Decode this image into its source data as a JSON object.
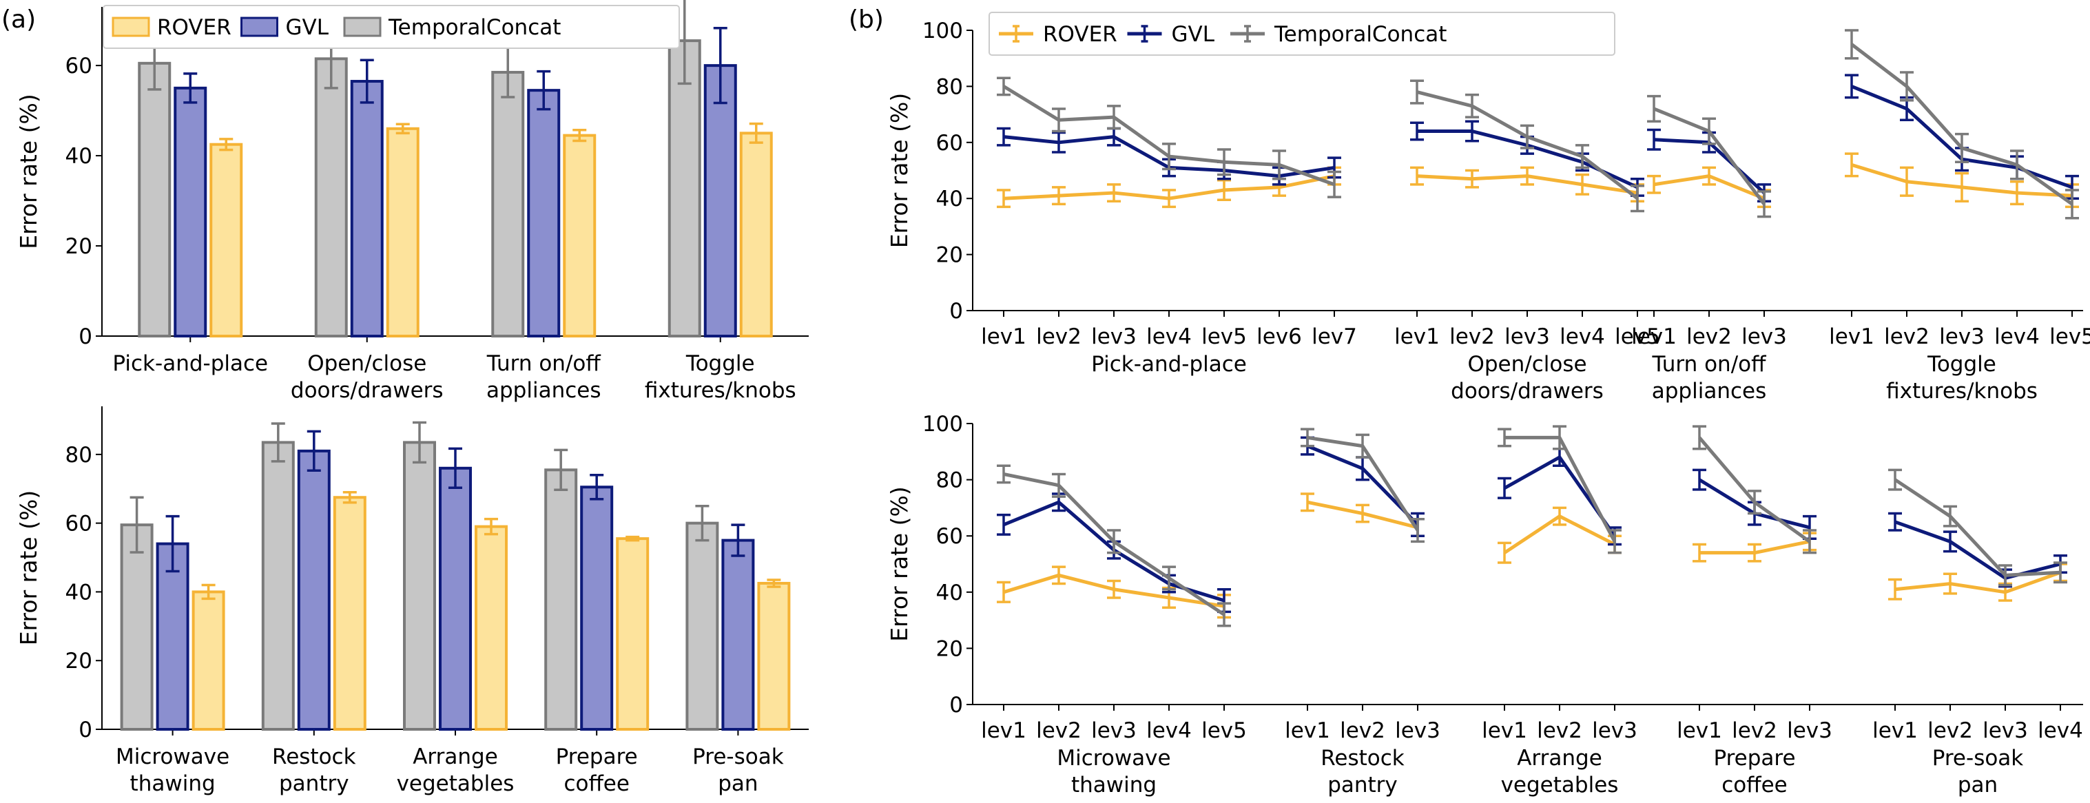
{
  "panel_labels": {
    "a": "(a)",
    "b": "(b)"
  },
  "colors": {
    "ROVER": "#f5b335",
    "GVL": "#0d1a7a",
    "TemporalConcat": "#7a7a7a"
  },
  "chart_data": [
    {
      "id": "a_top",
      "type": "bar",
      "ylabel": "Error rate (%)",
      "ylim": [
        0,
        73
      ],
      "yticks": [
        0,
        20,
        40,
        60
      ],
      "legend": {
        "placement": "top-left",
        "entries": [
          "ROVER",
          "GVL",
          "TemporalConcat"
        ]
      },
      "categories": [
        [
          "Pick-and-place"
        ],
        [
          "Open/close",
          "doors/drawers"
        ],
        [
          "Turn on/off",
          "appliances"
        ],
        [
          "Toggle",
          "fixtures/knobs"
        ]
      ],
      "series": [
        {
          "name": "TemporalConcat",
          "values": [
            60.5,
            61.5,
            58.5,
            65.5
          ],
          "err": [
            5.8,
            6.5,
            5.5,
            9.5
          ]
        },
        {
          "name": "GVL",
          "values": [
            55,
            56.5,
            54.5,
            60
          ],
          "err": [
            3.2,
            4.7,
            4.2,
            8.3
          ]
        },
        {
          "name": "ROVER",
          "values": [
            42.5,
            46,
            44.5,
            45
          ],
          "err": [
            1.2,
            1,
            1.2,
            2.1
          ]
        }
      ]
    },
    {
      "id": "a_bottom",
      "type": "bar",
      "ylabel": "Error rate (%)",
      "ylim": [
        0,
        94
      ],
      "yticks": [
        0,
        20,
        40,
        60,
        80
      ],
      "categories": [
        [
          "Microwave",
          "thawing"
        ],
        [
          "Restock",
          "pantry"
        ],
        [
          "Arrange",
          "vegetables"
        ],
        [
          "Prepare",
          "coffee"
        ],
        [
          "Pre-soak",
          "pan"
        ]
      ],
      "series": [
        {
          "name": "TemporalConcat",
          "values": [
            59.5,
            83.5,
            83.5,
            75.5,
            60
          ],
          "err": [
            8,
            5.5,
            5.8,
            5.8,
            5
          ]
        },
        {
          "name": "GVL",
          "values": [
            54,
            81,
            76,
            70.5,
            55
          ],
          "err": [
            8,
            5.7,
            5.7,
            3.5,
            4.5
          ]
        },
        {
          "name": "ROVER",
          "values": [
            40,
            67.5,
            59,
            55.5,
            42.5
          ],
          "err": [
            2,
            1.5,
            2.2,
            0.5,
            1
          ]
        }
      ]
    },
    {
      "id": "b_top",
      "type": "line",
      "ylabel": "Error rate (%)",
      "ylim": [
        0,
        100
      ],
      "yticks": [
        0,
        20,
        40,
        60,
        80,
        100
      ],
      "legend": {
        "placement": "top-left",
        "entries": [
          "ROVER",
          "GVL",
          "TemporalConcat"
        ]
      },
      "groups": [
        {
          "label": [
            "Pick-and-place"
          ],
          "x": [
            "lev1",
            "lev2",
            "lev3",
            "lev4",
            "lev5",
            "lev6",
            "lev7"
          ],
          "series": [
            {
              "name": "ROVER",
              "values": [
                40,
                41,
                42,
                40,
                43,
                44,
                48
              ],
              "err": [
                3,
                3,
                3,
                3,
                3.5,
                3,
                3
              ]
            },
            {
              "name": "GVL",
              "values": [
                62,
                60,
                62,
                51,
                50,
                48,
                51
              ],
              "err": [
                3,
                3.5,
                3,
                3,
                3,
                3,
                3.5
              ]
            },
            {
              "name": "TemporalConcat",
              "values": [
                80,
                68,
                69,
                55,
                53,
                52,
                45
              ],
              "err": [
                3,
                4,
                4,
                4.5,
                4.5,
                5,
                4.5
              ]
            }
          ]
        },
        {
          "label": [
            "Open/close",
            "doors/drawers"
          ],
          "x": [
            "lev1",
            "lev2",
            "lev3",
            "lev4",
            "lev5"
          ],
          "series": [
            {
              "name": "ROVER",
              "values": [
                48,
                47,
                48,
                45,
                42
              ],
              "err": [
                3,
                3,
                3,
                3.5,
                3
              ]
            },
            {
              "name": "GVL",
              "values": [
                64,
                64,
                59,
                53,
                44
              ],
              "err": [
                3,
                3.5,
                3,
                3,
                3
              ]
            },
            {
              "name": "TemporalConcat",
              "values": [
                78,
                73,
                62,
                55,
                40
              ],
              "err": [
                4,
                4,
                4,
                4,
                4.5
              ]
            }
          ]
        },
        {
          "label": [
            "Turn on/off",
            "appliances"
          ],
          "x": [
            "lev1",
            "lev2",
            "lev3"
          ],
          "series": [
            {
              "name": "ROVER",
              "values": [
                45,
                48,
                40
              ],
              "err": [
                3,
                3,
                3
              ]
            },
            {
              "name": "GVL",
              "values": [
                61,
                60,
                42
              ],
              "err": [
                3.5,
                3.5,
                3
              ]
            },
            {
              "name": "TemporalConcat",
              "values": [
                72,
                64,
                38
              ],
              "err": [
                4.5,
                4.5,
                4.5
              ]
            }
          ]
        },
        {
          "label": [
            "Toggle",
            "fixtures/knobs"
          ],
          "x": [
            "lev1",
            "lev2",
            "lev3",
            "lev4",
            "lev5"
          ],
          "series": [
            {
              "name": "ROVER",
              "values": [
                52,
                46,
                44,
                42,
                41
              ],
              "err": [
                4,
                5,
                5,
                4,
                4
              ]
            },
            {
              "name": "GVL",
              "values": [
                80,
                72,
                54,
                51,
                44
              ],
              "err": [
                4,
                4,
                4,
                4,
                4
              ]
            },
            {
              "name": "TemporalConcat",
              "values": [
                95,
                80,
                58,
                52,
                38
              ],
              "err": [
                5,
                5,
                5,
                5,
                5
              ]
            }
          ]
        }
      ]
    },
    {
      "id": "b_bottom",
      "type": "line",
      "ylabel": "Error rate (%)",
      "ylim": [
        0,
        100
      ],
      "yticks": [
        0,
        20,
        40,
        60,
        80,
        100
      ],
      "groups": [
        {
          "label": [
            "Microwave",
            "thawing"
          ],
          "x": [
            "lev1",
            "lev2",
            "lev3",
            "lev4",
            "lev5"
          ],
          "series": [
            {
              "name": "ROVER",
              "values": [
                40,
                46,
                41,
                38,
                35
              ],
              "err": [
                3.5,
                3,
                3,
                3.5,
                4
              ]
            },
            {
              "name": "GVL",
              "values": [
                64,
                72,
                55,
                43,
                37
              ],
              "err": [
                3.5,
                3,
                3,
                3,
                4
              ]
            },
            {
              "name": "TemporalConcat",
              "values": [
                82,
                78,
                58,
                45,
                32
              ],
              "err": [
                3,
                4,
                4,
                4,
                4
              ]
            }
          ]
        },
        {
          "label": [
            "Restock",
            "pantry"
          ],
          "x": [
            "lev1",
            "lev2",
            "lev3"
          ],
          "series": [
            {
              "name": "ROVER",
              "values": [
                72,
                68,
                63
              ],
              "err": [
                3,
                3,
                3
              ]
            },
            {
              "name": "GVL",
              "values": [
                92,
                84,
                64
              ],
              "err": [
                3,
                4,
                4
              ]
            },
            {
              "name": "TemporalConcat",
              "values": [
                95,
                92,
                62
              ],
              "err": [
                3,
                4,
                4
              ]
            }
          ]
        },
        {
          "label": [
            "Arrange",
            "vegetables"
          ],
          "x": [
            "lev1",
            "lev2",
            "lev3"
          ],
          "series": [
            {
              "name": "ROVER",
              "values": [
                54,
                67,
                57
              ],
              "err": [
                3.5,
                3,
                3
              ]
            },
            {
              "name": "GVL",
              "values": [
                77,
                88,
                60
              ],
              "err": [
                3.5,
                3,
                3
              ]
            },
            {
              "name": "TemporalConcat",
              "values": [
                95,
                95,
                58
              ],
              "err": [
                3,
                4,
                4
              ]
            }
          ]
        },
        {
          "label": [
            "Prepare",
            "coffee"
          ],
          "x": [
            "lev1",
            "lev2",
            "lev3"
          ],
          "series": [
            {
              "name": "ROVER",
              "values": [
                54,
                54,
                58
              ],
              "err": [
                3,
                3,
                3
              ]
            },
            {
              "name": "GVL",
              "values": [
                80,
                68,
                63
              ],
              "err": [
                3.5,
                4,
                4
              ]
            },
            {
              "name": "TemporalConcat",
              "values": [
                95,
                72,
                58
              ],
              "err": [
                4,
                4,
                4
              ]
            }
          ]
        },
        {
          "label": [
            "Pre-soak",
            "pan"
          ],
          "x": [
            "lev1",
            "lev2",
            "lev3",
            "lev4"
          ],
          "series": [
            {
              "name": "ROVER",
              "values": [
                41,
                43,
                40,
                47
              ],
              "err": [
                3.5,
                3.5,
                3,
                3
              ]
            },
            {
              "name": "GVL",
              "values": [
                65,
                58,
                45,
                50
              ],
              "err": [
                3,
                3.5,
                3,
                3
              ]
            },
            {
              "name": "TemporalConcat",
              "values": [
                80,
                67,
                46,
                47
              ],
              "err": [
                3.5,
                3.5,
                3.5,
                3.5
              ]
            }
          ]
        }
      ]
    }
  ]
}
